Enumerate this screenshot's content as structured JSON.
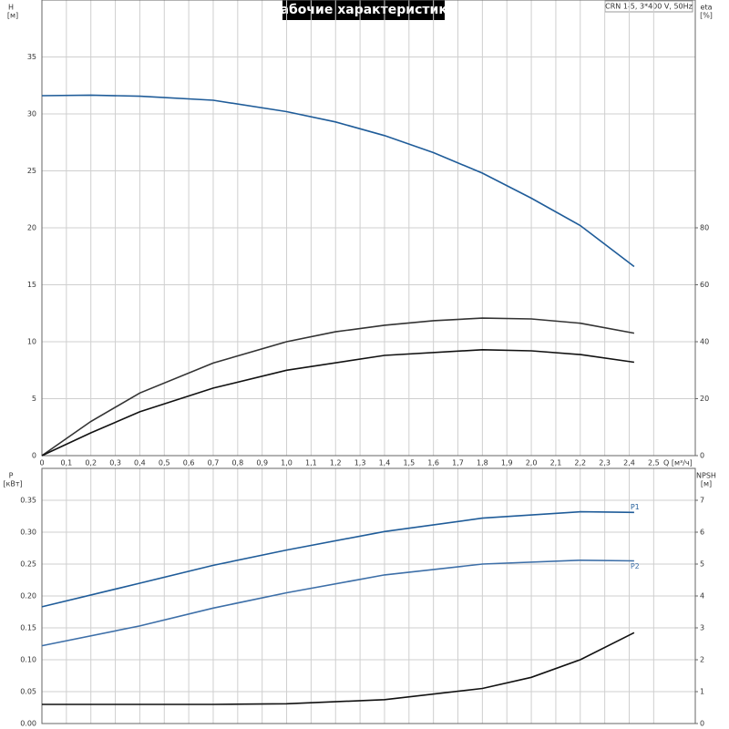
{
  "title": "Рабочие характеристики",
  "model": "CRN 1-5, 3*400 V, 50Hz",
  "chart_data": [
    {
      "type": "line",
      "ylabel": "H",
      "yunit": "[м]",
      "y2label": "eta",
      "y2unit": "[%]",
      "xlabel": "Q [м³/ч]",
      "xlim": [
        0,
        2.67
      ],
      "ylim": [
        0,
        40
      ],
      "y2lim": [
        0,
        160
      ],
      "grid": true,
      "xticks": [
        0,
        {
          "value": 0.1,
          "label": "0,1"
        },
        {
          "value": 0.2,
          "label": "0,2"
        },
        {
          "value": 0.3,
          "label": "0,3"
        },
        {
          "value": 0.4,
          "label": "0,4"
        },
        {
          "value": 0.5,
          "label": "0,5"
        },
        {
          "value": 0.6,
          "label": "0,6"
        },
        {
          "value": 0.7,
          "label": "0,7"
        },
        {
          "value": 0.8,
          "label": "0,8"
        },
        {
          "value": 0.9,
          "label": "0,9"
        },
        {
          "value": 1.0,
          "label": "1,0"
        },
        {
          "value": 1.1,
          "label": "1,1"
        },
        {
          "value": 1.2,
          "label": "1,2"
        },
        {
          "value": 1.3,
          "label": "1,3"
        },
        {
          "value": 1.4,
          "label": "1,4"
        },
        {
          "value": 1.5,
          "label": "1,5"
        },
        {
          "value": 1.6,
          "label": "1,6"
        },
        {
          "value": 1.7,
          "label": "1,7"
        },
        {
          "value": 1.8,
          "label": "1,8"
        },
        {
          "value": 1.9,
          "label": "1,9"
        },
        {
          "value": 2.0,
          "label": "2,0"
        },
        {
          "value": 2.1,
          "label": "2,1"
        },
        {
          "value": 2.2,
          "label": "2,2"
        },
        {
          "value": 2.3,
          "label": "2,3"
        },
        {
          "value": 2.4,
          "label": "2,4"
        },
        {
          "value": 2.5,
          "label": "2,5"
        }
      ],
      "yticks": [
        0,
        5,
        10,
        15,
        20,
        25,
        30,
        35
      ],
      "y2ticks": [
        0,
        20,
        40,
        60,
        80
      ],
      "series": [
        {
          "color": "#1f5c99",
          "x": [
            0,
            0.2,
            0.4,
            0.7,
            1.0,
            1.2,
            1.4,
            1.6,
            1.8,
            2.0,
            2.2,
            2.42
          ],
          "values": [
            31.6,
            31.65,
            31.55,
            31.2,
            30.2,
            29.3,
            28.1,
            26.6,
            24.8,
            22.6,
            20.2,
            16.6
          ]
        },
        {
          "color": "#333333",
          "axis": "y2",
          "x": [
            0,
            0.2,
            0.4,
            0.7,
            1.0,
            1.2,
            1.4,
            1.6,
            1.8,
            2.0,
            2.2,
            2.42
          ],
          "values": [
            0,
            12,
            22,
            32.5,
            40,
            43.5,
            45.8,
            47.4,
            48.3,
            48,
            46.5,
            43
          ]
        },
        {
          "color": "#111111",
          "axis": "y2",
          "x": [
            0,
            0.2,
            0.4,
            0.7,
            1.0,
            1.4,
            1.8,
            2.0,
            2.2,
            2.42
          ],
          "values": [
            0,
            8,
            15.4,
            23.7,
            30,
            35.2,
            37.2,
            36.8,
            35.5,
            32.8
          ]
        }
      ]
    },
    {
      "type": "line",
      "ylabel": "P",
      "yunit": "[кВт]",
      "y2label": "NPSH",
      "y2unit": "[м]",
      "xlim": [
        0,
        2.67
      ],
      "ylim": [
        0,
        0.4
      ],
      "y2lim": [
        0,
        8
      ],
      "grid": true,
      "yticks": [
        {
          "value": 0,
          "label": "0.00"
        },
        {
          "value": 0.05,
          "label": "0.05"
        },
        {
          "value": 0.1,
          "label": "0.10"
        },
        {
          "value": 0.15,
          "label": "0.15"
        },
        {
          "value": 0.2,
          "label": "0.20"
        },
        {
          "value": 0.25,
          "label": "0.25"
        },
        {
          "value": 0.3,
          "label": "0.30"
        },
        {
          "value": 0.35,
          "label": "0.35"
        }
      ],
      "y2ticks": [
        0,
        1,
        2,
        3,
        4,
        5,
        6,
        7
      ],
      "series": [
        {
          "name": "P1",
          "color": "#1f5c99",
          "x": [
            0,
            0.4,
            0.7,
            1.0,
            1.4,
            1.8,
            2.2,
            2.42
          ],
          "values": [
            0.183,
            0.22,
            0.248,
            0.272,
            0.301,
            0.322,
            0.332,
            0.331
          ]
        },
        {
          "name": "P2",
          "color": "#3d6fa8",
          "x": [
            0,
            0.4,
            0.7,
            1.0,
            1.4,
            1.8,
            2.2,
            2.42
          ],
          "values": [
            0.122,
            0.153,
            0.181,
            0.205,
            0.233,
            0.25,
            0.256,
            0.255
          ]
        },
        {
          "color": "#111111",
          "axis": "y2",
          "x": [
            0,
            0.7,
            1.0,
            1.4,
            1.8,
            2.0,
            2.2,
            2.42
          ],
          "values": [
            0.6,
            0.6,
            0.62,
            0.75,
            1.1,
            1.45,
            2.0,
            2.85
          ]
        }
      ]
    }
  ]
}
